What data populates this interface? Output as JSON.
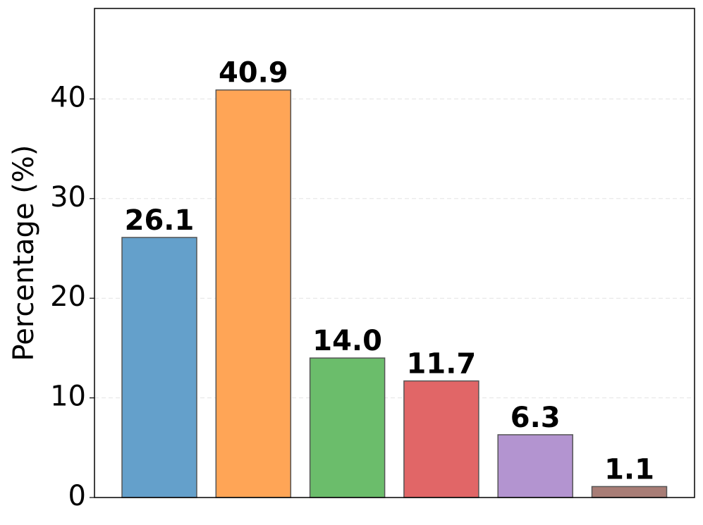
{
  "chart_data": {
    "type": "bar",
    "y_label": "Percentage (%)",
    "categories": [
      null,
      null,
      null,
      null,
      null,
      null
    ],
    "values": [
      26.1,
      40.9,
      14.0,
      11.7,
      6.3,
      1.1
    ],
    "value_labels": [
      "26.1",
      "40.9",
      "14.0",
      "11.7",
      "6.3",
      "1.1"
    ],
    "colors": [
      "#64a0cb",
      "#ffa556",
      "#6bbd6b",
      "#e16667",
      "#b394d0",
      "#a87d76"
    ],
    "ylim": [
      0,
      49.08
    ],
    "yticks": [
      0,
      10,
      20,
      30,
      40
    ],
    "grid": true
  }
}
